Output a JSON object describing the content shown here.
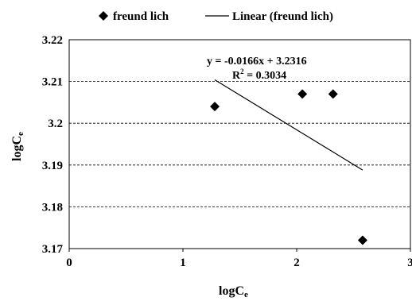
{
  "chart_data": {
    "type": "scatter",
    "title": "",
    "xlabel": "logC",
    "xlabel_sub": "e",
    "ylabel": "logC",
    "ylabel_sub": "e",
    "xlim": [
      0,
      3
    ],
    "ylim": [
      3.17,
      3.22
    ],
    "x_ticks": [
      "0",
      "1",
      "2",
      "3"
    ],
    "y_ticks": [
      "3.17",
      "3.18",
      "3.19",
      "3.2",
      "3.21",
      "3.22"
    ],
    "grid": "horizontal dashed",
    "legend_position": "top",
    "series": [
      {
        "name": "freund lich",
        "marker": "diamond",
        "color": "#000000",
        "points": [
          {
            "x": 1.28,
            "y": 3.204
          },
          {
            "x": 2.05,
            "y": 3.207
          },
          {
            "x": 2.32,
            "y": 3.207
          },
          {
            "x": 2.58,
            "y": 3.172
          }
        ]
      },
      {
        "name": "Linear (freund lich)",
        "type": "line",
        "color": "#000000",
        "points": [
          {
            "x": 1.28,
            "y": 3.2104
          },
          {
            "x": 2.58,
            "y": 3.1888
          }
        ]
      }
    ],
    "annotations": {
      "equation": "y = -0.0166x + 3.2316",
      "r2_label": "R",
      "r2_sup": "2",
      "r2_value": " = 0.3034"
    }
  }
}
